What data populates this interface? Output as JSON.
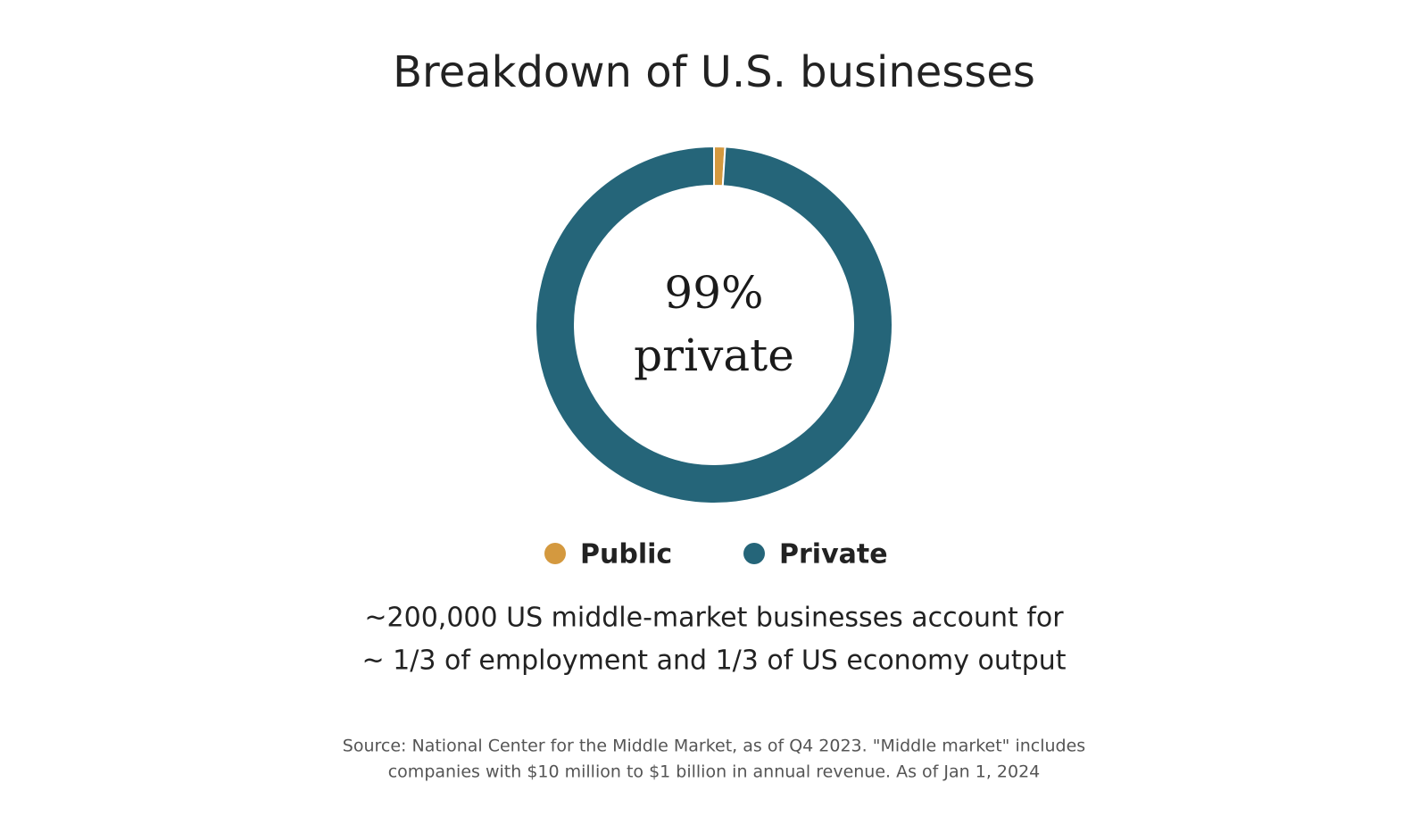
{
  "chart_data": {
    "type": "donut",
    "title": "Breakdown of U.S. businesses",
    "categories": [
      "Public",
      "Private"
    ],
    "values": [
      1,
      99
    ],
    "colors": [
      "#d4993f",
      "#256579"
    ],
    "center_label": [
      "99%",
      "private"
    ],
    "notes": [
      "~200,000 US middle-market businesses account for",
      "~ 1/3 of employment and 1/3 of US economy output"
    ],
    "source": [
      "Source: National Center for the Middle Market, as of Q4 2023. \"Middle market\" includes",
      "companies with $10 million to $1 billion in annual revenue. As of Jan 1, 2024"
    ],
    "legend": "bottom"
  }
}
